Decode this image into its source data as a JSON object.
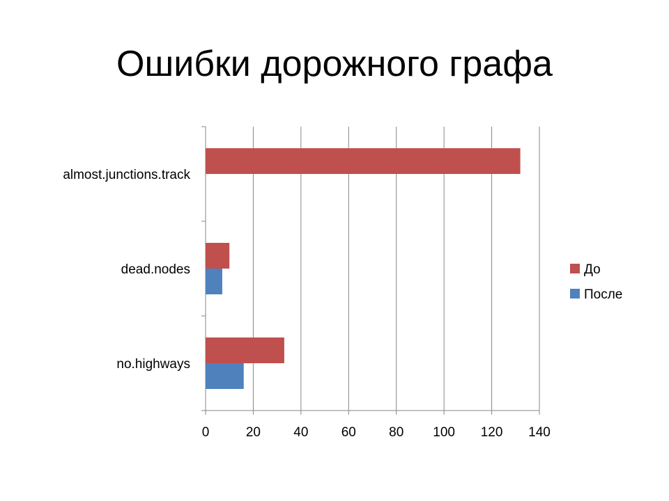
{
  "title": "Ошибки дорожного графа",
  "colors": {
    "before": "#c0504d",
    "after": "#4f81bd",
    "grid": "#868686",
    "axis": "#868686"
  },
  "chart_data": {
    "type": "bar",
    "orientation": "horizontal",
    "title": "Ошибки дорожного графа",
    "categories": [
      "almost.junctions.track",
      "dead.nodes",
      "no.highways"
    ],
    "series": [
      {
        "name": "До",
        "values": [
          132,
          10,
          33
        ]
      },
      {
        "name": "После",
        "values": [
          0,
          7,
          16
        ]
      }
    ],
    "xlim": [
      0,
      140
    ],
    "xticks": [
      0,
      20,
      40,
      60,
      80,
      100,
      120,
      140
    ],
    "grid": "vertical",
    "legend": "right"
  }
}
